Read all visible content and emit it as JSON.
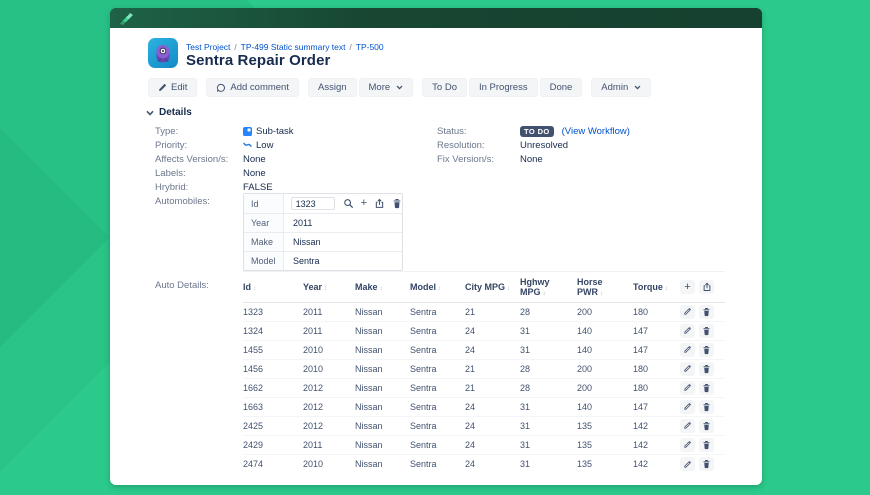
{
  "colors": {
    "background_green": "#2bca8b",
    "topbar_green": "#17452f",
    "link_blue": "#0052cc",
    "text_dark": "#172b4d",
    "label_gray": "#6b778c",
    "badge_navy": "#42526e",
    "button_gray": "#f4f5f7",
    "border_gray": "#dfe1e6",
    "avatar_teal": "#189fd4",
    "avatar_purple": "#8a5fd0"
  },
  "icons": {
    "sort_glyph": "↕",
    "plus_glyph": "+",
    "logo": "three-arrows-up-right",
    "edit": "pencil-icon",
    "comment": "speech-bubble-icon",
    "search": "magnifier-icon",
    "export": "box-arrow-up-icon",
    "delete": "trash-icon"
  },
  "breadcrumb": {
    "separator": "/",
    "items": [
      "Test Project",
      "TP-499 Static summary text",
      "TP-500"
    ]
  },
  "page": {
    "title": "Sentra Repair Order"
  },
  "toolbar": {
    "edit": "Edit",
    "add_comment": "Add comment",
    "assign": "Assign",
    "more": "More",
    "todo": "To Do",
    "in_progress": "In Progress",
    "done": "Done",
    "admin": "Admin"
  },
  "details": {
    "header": "Details",
    "left": {
      "type_label": "Type:",
      "type_value": "Sub-task",
      "priority_label": "Priority:",
      "priority_value": "Low",
      "affects_label": "Affects Version/s:",
      "affects_value": "None",
      "labels_label": "Labels:",
      "labels_value": "None",
      "hybrid_label": "Hrybrid:",
      "hybrid_value": "FALSE",
      "automobiles_label": "Automobiles:"
    },
    "right": {
      "status_label": "Status:",
      "status_badge": "TO DO",
      "workflow_link": "(View Workflow)",
      "resolution_label": "Resolution:",
      "resolution_value": "Unresolved",
      "fix_label": "Fix Version/s:",
      "fix_value": "None"
    }
  },
  "automobiles": {
    "rows": [
      {
        "label": "Id",
        "value": "1323"
      },
      {
        "label": "Year",
        "value": "2011"
      },
      {
        "label": "Make",
        "value": "Nissan"
      },
      {
        "label": "Model",
        "value": "Sentra"
      }
    ]
  },
  "auto_details": {
    "label": "Auto Details:",
    "columns": [
      "Id",
      "Year",
      "Make",
      "Model",
      "City MPG",
      "Hghwy MPG",
      "Horse PWR",
      "Torque"
    ],
    "rows": [
      [
        "1323",
        "2011",
        "Nissan",
        "Sentra",
        "21",
        "28",
        "200",
        "180"
      ],
      [
        "1324",
        "2011",
        "Nissan",
        "Sentra",
        "24",
        "31",
        "140",
        "147"
      ],
      [
        "1455",
        "2010",
        "Nissan",
        "Sentra",
        "24",
        "31",
        "140",
        "147"
      ],
      [
        "1456",
        "2010",
        "Nissan",
        "Sentra",
        "21",
        "28",
        "200",
        "180"
      ],
      [
        "1662",
        "2012",
        "Nissan",
        "Sentra",
        "21",
        "28",
        "200",
        "180"
      ],
      [
        "1663",
        "2012",
        "Nissan",
        "Sentra",
        "24",
        "31",
        "140",
        "147"
      ],
      [
        "2425",
        "2012",
        "Nissan",
        "Sentra",
        "24",
        "31",
        "135",
        "142"
      ],
      [
        "2429",
        "2011",
        "Nissan",
        "Sentra",
        "24",
        "31",
        "135",
        "142"
      ],
      [
        "2474",
        "2010",
        "Nissan",
        "Sentra",
        "24",
        "31",
        "135",
        "142"
      ]
    ]
  }
}
